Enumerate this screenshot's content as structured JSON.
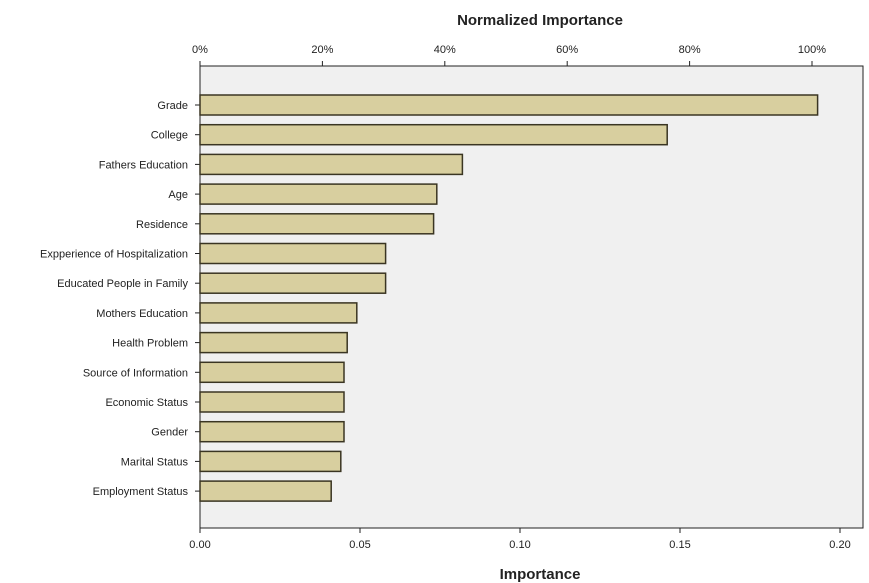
{
  "chart_data": {
    "type": "bar",
    "orientation": "horizontal",
    "top_axis_title": "Normalized Importance",
    "bottom_axis_title": "Importance",
    "categories": [
      "Grade",
      "College",
      "Fathers Education",
      "Age",
      "Residence",
      "Expperience of Hospitalization",
      "Educated People in Family",
      "Mothers Education",
      "Health Problem",
      "Source of Information",
      "Economic Status",
      "Gender",
      "Marital Status",
      "Employment Status"
    ],
    "values": [
      0.193,
      0.146,
      0.082,
      0.074,
      0.073,
      0.058,
      0.058,
      0.049,
      0.046,
      0.045,
      0.045,
      0.045,
      0.044,
      0.041
    ],
    "bottom_ticks": [
      "0.00",
      "0.05",
      "0.10",
      "0.15",
      "0.20"
    ],
    "bottom_tick_values": [
      0,
      0.05,
      0.1,
      0.15,
      0.2
    ],
    "top_ticks": [
      "0%",
      "20%",
      "40%",
      "60%",
      "80%",
      "100%"
    ],
    "top_tick_values": [
      0,
      20,
      40,
      60,
      80,
      100
    ],
    "xlim": [
      0,
      0.21
    ],
    "bar_color": "#d8cf9f",
    "bar_edge_color": "#3a3522",
    "plot_background": "#f0f0f0",
    "grid": false,
    "legend": "none"
  }
}
